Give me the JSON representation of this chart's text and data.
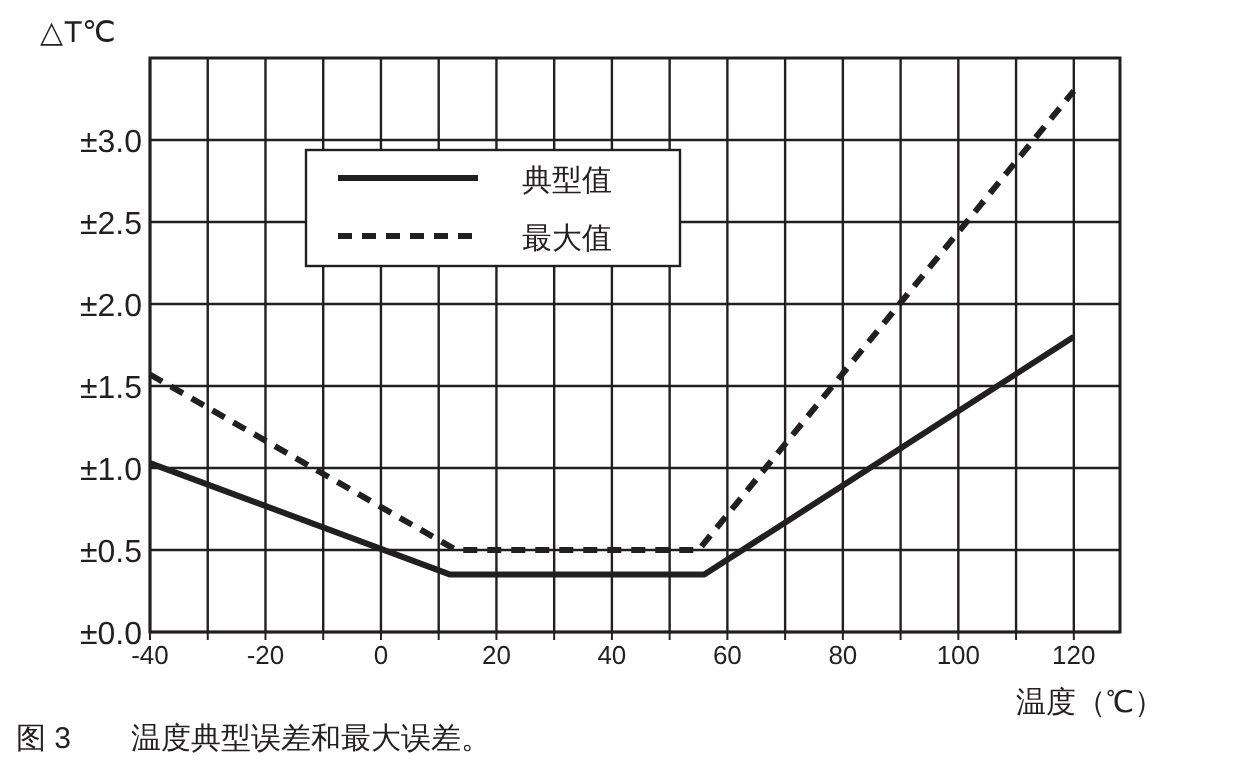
{
  "chart_data": {
    "type": "line",
    "ylabel": "△T℃",
    "xlabel": "温度（℃）",
    "annotations": [
      "图 3　　温度典型误差和最大误差。"
    ],
    "xlim": [
      -40,
      128
    ],
    "ylim": [
      0,
      3.5
    ],
    "xticks": [
      -40,
      {
        "value": -30,
        "label": null
      },
      -20,
      {
        "value": -10,
        "label": null
      },
      0,
      {
        "value": 10,
        "label": null
      },
      20,
      {
        "value": 30,
        "label": null
      },
      40,
      {
        "value": 50,
        "label": null
      },
      60,
      {
        "value": 70,
        "label": null
      },
      80,
      {
        "value": 90,
        "label": null
      },
      100,
      {
        "value": 110,
        "label": null
      },
      120
    ],
    "yticks": [
      {
        "value": 0,
        "label": "±0.0"
      },
      {
        "value": 0.5,
        "label": "±0.5"
      },
      {
        "value": 1,
        "label": "±1.0"
      },
      {
        "value": 1.5,
        "label": "±1.5"
      },
      {
        "value": 2,
        "label": "±2.0"
      },
      {
        "value": 2.5,
        "label": "±2.5"
      },
      {
        "value": 3,
        "label": "±3.0"
      }
    ],
    "grid": true,
    "legend": "top left",
    "series": [
      {
        "name": "典型值",
        "color": "#231f20",
        "line_style": "solid",
        "x": [
          -40,
          12,
          56,
          120
        ],
        "values": [
          1.03,
          0.35,
          0.35,
          1.8
        ]
      },
      {
        "name": "最大值",
        "color": "#231f20",
        "line_style": "dashed",
        "x": [
          -40,
          13,
          55,
          120
        ],
        "values": [
          1.57,
          0.5,
          0.5,
          3.3
        ]
      }
    ]
  }
}
